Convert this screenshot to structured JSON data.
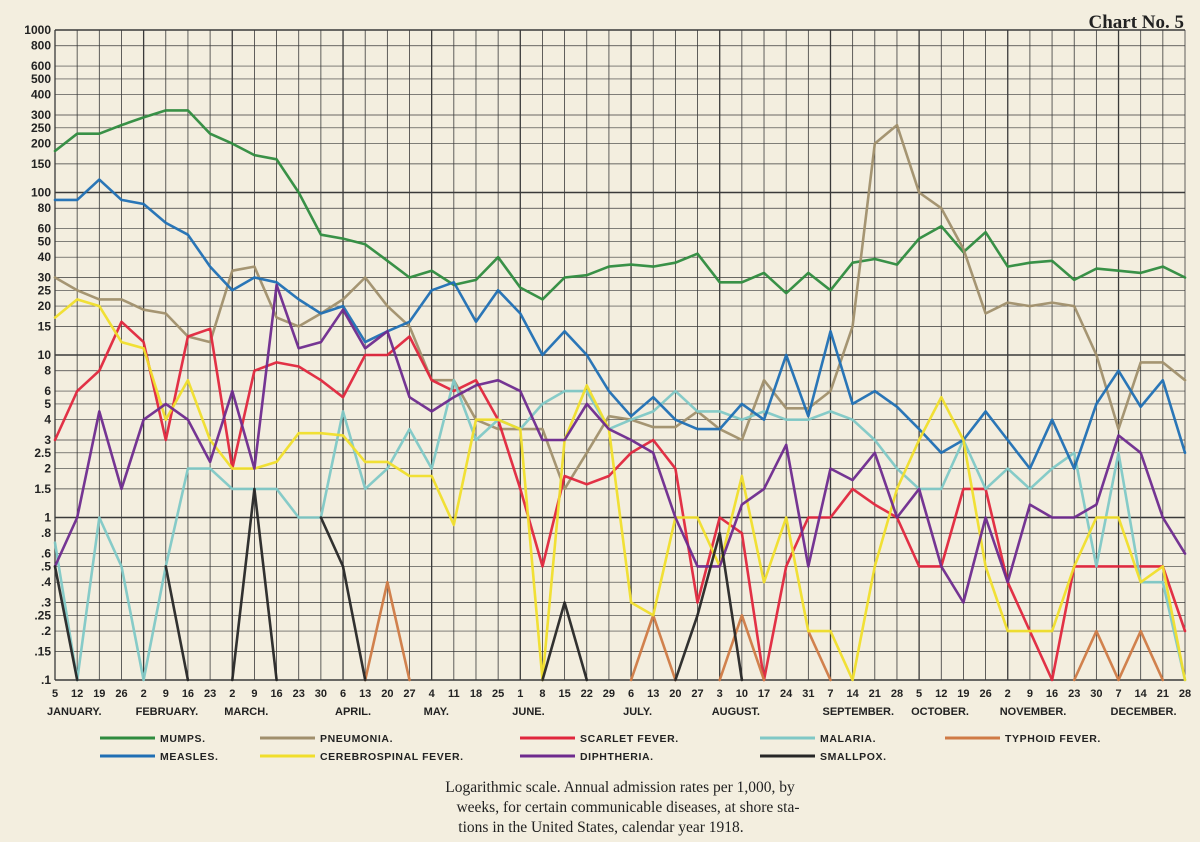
{
  "chart_label": "Chart No. 5",
  "caption_lines": [
    "Logarithmic scale.  Annual admission rates per 1,000, by",
    "weeks, for certain communicable diseases, at shore sta-",
    "tions in the United States, calendar year 1918."
  ],
  "chart_data": {
    "type": "line",
    "yscale": "log",
    "ylim": [
      0.1,
      1000
    ],
    "y_ticks": [
      1000,
      800,
      600,
      500,
      400,
      300,
      250,
      200,
      150,
      100,
      80,
      60,
      50,
      40,
      30,
      25,
      20,
      15,
      10,
      8,
      6,
      5,
      4,
      3,
      2.5,
      2,
      1.5,
      1,
      0.8,
      0.6,
      0.5,
      0.4,
      0.3,
      0.25,
      0.2,
      0.15,
      0.1
    ],
    "y_tick_labels": [
      "1000",
      "800",
      "600",
      "500",
      "400",
      "300",
      "250",
      "200",
      "150",
      "100",
      "80",
      "60",
      "50",
      "40",
      "30",
      "25",
      "20",
      "15",
      "10",
      "8",
      "6",
      "5",
      "4",
      "3",
      "2.5",
      "2",
      "1.5",
      "1",
      ".8",
      ".6",
      ".5",
      ".4",
      ".3",
      ".25",
      ".2",
      ".15",
      ".1"
    ],
    "x": [
      "5",
      "12",
      "19",
      "26",
      "2",
      "9",
      "16",
      "23",
      "2",
      "9",
      "16",
      "23",
      "30",
      "6",
      "13",
      "20",
      "27",
      "4",
      "11",
      "18",
      "25",
      "1",
      "8",
      "15",
      "22",
      "29",
      "6",
      "13",
      "20",
      "27",
      "3",
      "10",
      "17",
      "24",
      "31",
      "7",
      "14",
      "21",
      "28",
      "5",
      "12",
      "19",
      "26",
      "2",
      "9",
      "16",
      "23",
      "30",
      "7",
      "14",
      "21",
      "28"
    ],
    "months": [
      {
        "label": "JANUARY.",
        "start": 0
      },
      {
        "label": "FEBRUARY.",
        "start": 4
      },
      {
        "label": "MARCH.",
        "start": 8
      },
      {
        "label": "APRIL.",
        "start": 13
      },
      {
        "label": "MAY.",
        "start": 17
      },
      {
        "label": "JUNE.",
        "start": 21
      },
      {
        "label": "JULY.",
        "start": 26
      },
      {
        "label": "AUGUST.",
        "start": 30
      },
      {
        "label": "SEPTEMBER.",
        "start": 35
      },
      {
        "label": "OCTOBER.",
        "start": 39
      },
      {
        "label": "NOVEMBER.",
        "start": 43
      },
      {
        "label": "DECEMBER.",
        "start": 48
      }
    ],
    "legend_position": "bottom",
    "grid": true,
    "series": [
      {
        "name": "MUMPS.",
        "color": "#2e8b3e",
        "values": [
          180,
          230,
          230,
          260,
          290,
          320,
          320,
          230,
          200,
          170,
          160,
          100,
          55,
          52,
          48,
          38,
          30,
          33,
          27,
          29,
          40,
          26,
          22,
          30,
          31,
          35,
          36,
          35,
          37,
          42,
          28,
          28,
          32,
          24,
          32,
          25,
          37,
          39,
          36,
          52,
          62,
          43,
          57,
          35,
          37,
          38,
          29,
          34,
          33,
          32,
          35,
          30
        ]
      },
      {
        "name": "PNEUMONIA.",
        "color": "#a08f6c",
        "values": [
          30,
          25,
          22,
          22,
          19,
          18,
          13,
          12,
          33,
          35,
          17,
          15,
          18,
          22,
          30,
          20,
          15,
          7,
          7,
          4,
          3.5,
          3.5,
          3.5,
          1.5,
          2.5,
          4.2,
          4,
          3.6,
          3.6,
          4.5,
          3.5,
          3,
          7,
          4.7,
          4.7,
          6,
          15,
          200,
          260,
          100,
          80,
          45,
          18,
          21,
          20,
          21,
          20,
          10,
          3.5,
          9,
          9,
          7
        ]
      },
      {
        "name": "SCARLET FEVER.",
        "color": "#e0263d",
        "values": [
          3,
          6,
          8,
          16,
          12,
          3,
          13,
          14.5,
          2,
          8,
          9,
          8.5,
          7,
          5.5,
          10,
          10,
          13,
          7,
          6,
          7,
          4,
          1.5,
          0.5,
          1.8,
          1.6,
          1.8,
          2.5,
          3,
          2,
          0.3,
          1,
          0.8,
          0.1,
          0.5,
          1,
          1,
          1.5,
          1.2,
          1,
          0.5,
          0.5,
          1.5,
          1.5,
          0.4,
          0.2,
          0.1,
          0.5,
          0.5,
          0.5,
          0.5,
          0.5,
          0.2
        ]
      },
      {
        "name": "MALARIA.",
        "color": "#7fc8c6",
        "values": [
          0.7,
          0.1,
          1,
          0.5,
          0.1,
          0.5,
          2,
          2,
          1.5,
          1.5,
          1.5,
          1,
          1,
          4.5,
          1.5,
          2,
          3.5,
          2,
          7,
          3,
          4,
          3.5,
          5,
          6,
          6,
          3.5,
          4,
          4.5,
          6,
          4.5,
          4.5,
          4,
          4.5,
          4,
          4,
          4.5,
          4,
          3,
          2,
          1.5,
          1.5,
          3,
          1.5,
          2,
          1.5,
          2,
          2.5,
          0.5,
          2.5,
          0.4,
          0.4,
          0.1
        ]
      },
      {
        "name": "TYPHOID FEVER.",
        "color": "#cf7a45",
        "values": [
          null,
          null,
          null,
          null,
          null,
          null,
          null,
          null,
          null,
          null,
          null,
          null,
          null,
          null,
          0.1,
          0.4,
          0.1,
          null,
          null,
          null,
          null,
          null,
          null,
          null,
          null,
          null,
          0.1,
          0.25,
          0.1,
          null,
          0.1,
          0.25,
          0.1,
          null,
          0.2,
          0.1,
          null,
          null,
          null,
          null,
          null,
          null,
          null,
          null,
          null,
          null,
          0.1,
          0.2,
          0.1,
          0.2,
          0.1,
          null
        ]
      },
      {
        "name": "MEASLES.",
        "color": "#1f6fb4",
        "values": [
          90,
          90,
          120,
          90,
          85,
          65,
          55,
          35,
          25,
          30,
          28,
          22,
          18,
          20,
          12,
          14,
          16,
          25,
          28,
          16,
          25,
          18,
          10,
          14,
          10,
          6,
          4.2,
          5.5,
          4,
          3.5,
          3.5,
          5,
          4,
          10,
          4.2,
          14,
          5,
          6,
          4.8,
          3.5,
          2.5,
          3,
          4.5,
          3,
          2,
          4,
          2,
          5,
          8,
          4.8,
          7,
          2.5
        ]
      },
      {
        "name": "CEREBROSPINAL FEVER.",
        "color": "#f0de2b",
        "values": [
          17,
          22,
          20,
          12,
          11,
          4,
          7,
          3,
          2,
          2,
          2.2,
          3.3,
          3.3,
          3.2,
          2.2,
          2.2,
          1.8,
          1.8,
          0.9,
          4,
          4,
          3.5,
          0.1,
          3,
          6.5,
          3.5,
          0.3,
          0.25,
          1,
          1,
          0.5,
          1.8,
          0.4,
          1,
          0.2,
          0.2,
          0.1,
          0.5,
          1.5,
          3,
          5.5,
          3,
          0.5,
          0.2,
          0.2,
          0.2,
          0.5,
          1,
          1,
          0.4,
          0.5,
          0.1
        ]
      },
      {
        "name": "DIPHTHERIA.",
        "color": "#6e2a8e",
        "values": [
          0.5,
          1,
          4.5,
          1.5,
          4,
          5,
          4,
          2.2,
          6,
          2,
          27,
          11,
          12,
          19,
          11,
          14,
          5.5,
          4.5,
          5.5,
          6.5,
          7,
          6,
          3,
          3,
          5,
          3.5,
          3,
          2.5,
          1,
          0.5,
          0.5,
          1.2,
          1.5,
          2.8,
          0.5,
          2,
          1.7,
          2.5,
          1,
          1.5,
          0.5,
          0.3,
          1,
          0.4,
          1.2,
          1,
          1,
          1.2,
          3.2,
          2.5,
          1,
          0.6
        ]
      },
      {
        "name": "SMALLPOX.",
        "color": "#262626",
        "values": [
          0.5,
          0.1,
          null,
          null,
          null,
          0.5,
          0.1,
          null,
          0.1,
          1.5,
          0.1,
          null,
          1,
          0.5,
          0.1,
          null,
          null,
          null,
          null,
          null,
          null,
          null,
          0.1,
          0.3,
          0.1,
          null,
          null,
          null,
          0.1,
          0.25,
          0.8,
          0.1,
          null,
          null,
          null,
          null,
          null,
          null,
          null,
          null,
          null,
          null,
          null,
          null,
          null,
          null,
          null,
          null,
          null,
          null,
          null,
          null
        ]
      }
    ]
  }
}
